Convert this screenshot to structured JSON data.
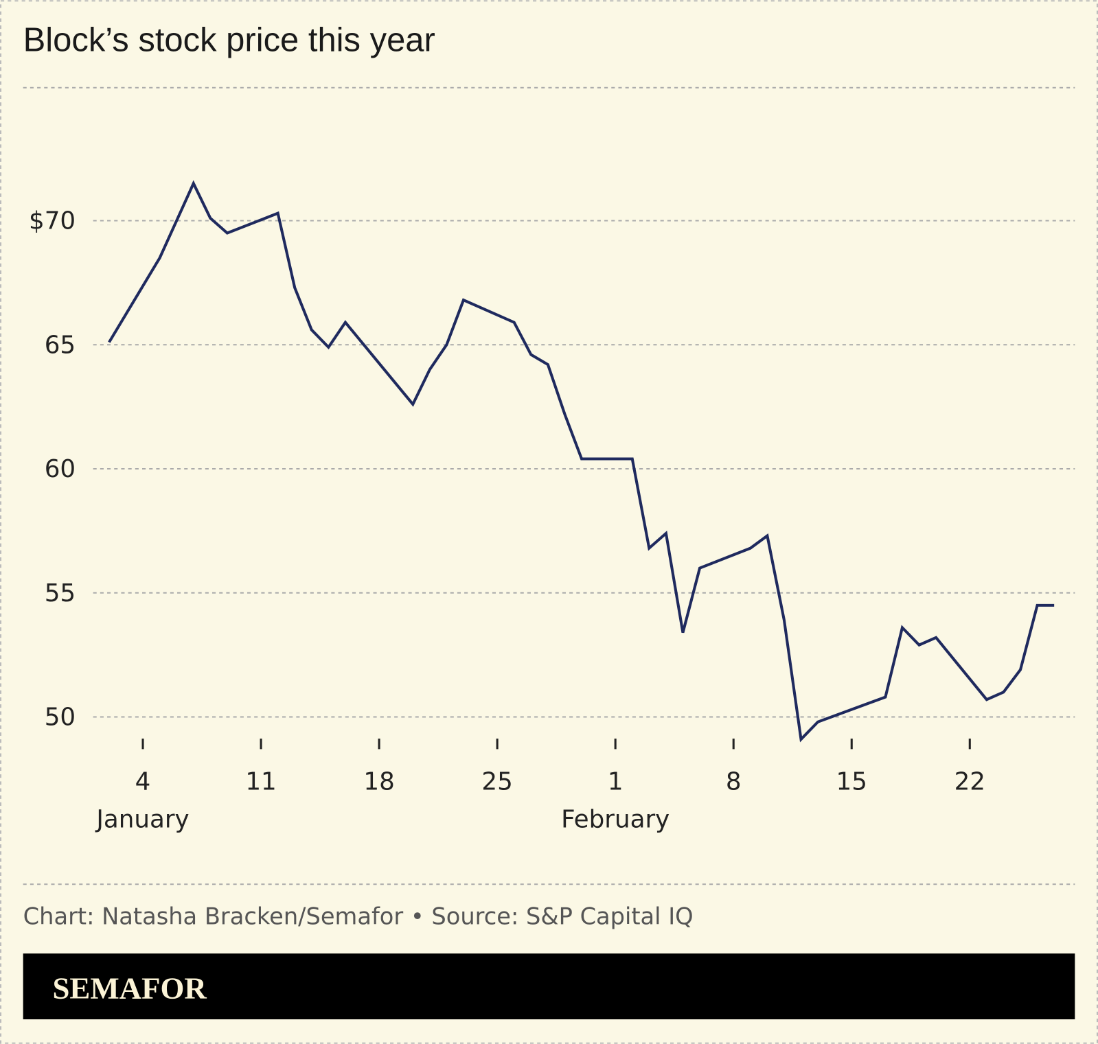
{
  "title": "Block’s stock price this year",
  "credit": "Chart: Natasha Bracken/Semafor • Source: S&P Capital IQ",
  "logo": "SEMAFOR",
  "colors": {
    "background": "#fbf8e5",
    "line": "#1f2a5e",
    "footer_bar": "#000000",
    "logo_text": "#fbf3d6"
  },
  "chart_data": {
    "type": "line",
    "title": "Block’s stock price this year",
    "xlabel": "",
    "ylabel": "",
    "ylim": [
      48.5,
      72
    ],
    "grid": true,
    "y_ticks": [
      {
        "value": 70,
        "label": "$70"
      },
      {
        "value": 65,
        "label": "65"
      },
      {
        "value": 60,
        "label": "60"
      },
      {
        "value": 55,
        "label": "55"
      },
      {
        "value": 50,
        "label": "50"
      }
    ],
    "x_ticks": [
      {
        "date": "Jan 4",
        "label": "4",
        "month": "January"
      },
      {
        "date": "Jan 11",
        "label": "11"
      },
      {
        "date": "Jan 18",
        "label": "18"
      },
      {
        "date": "Jan 25",
        "label": "25"
      },
      {
        "date": "Feb 1",
        "label": "1",
        "month": "February"
      },
      {
        "date": "Feb 8",
        "label": "8"
      },
      {
        "date": "Feb 15",
        "label": "15"
      },
      {
        "date": "Feb 22",
        "label": "22"
      }
    ],
    "series": [
      {
        "x": [
          "Jan 2",
          "Jan 5",
          "Jan 7",
          "Jan 8",
          "Jan 9",
          "Jan 12",
          "Jan 13",
          "Jan 14",
          "Jan 15",
          "Jan 16",
          "Jan 20",
          "Jan 21",
          "Jan 22",
          "Jan 23",
          "Jan 26",
          "Jan 27",
          "Jan 28",
          "Jan 29",
          "Jan 30",
          "Feb 2",
          "Feb 3",
          "Feb 4",
          "Feb 5",
          "Feb 6",
          "Feb 9",
          "Feb 10",
          "Feb 11",
          "Feb 12",
          "Feb 13",
          "Feb 17",
          "Feb 18",
          "Feb 19",
          "Feb 20",
          "Feb 23",
          "Feb 24",
          "Feb 25",
          "Feb 26",
          "Feb 27"
        ],
        "y": [
          65.1,
          68.5,
          71.5,
          70.1,
          69.5,
          70.3,
          67.3,
          65.6,
          64.9,
          65.9,
          62.6,
          64.0,
          65.0,
          66.8,
          65.9,
          64.6,
          64.2,
          62.2,
          60.4,
          60.4,
          56.8,
          57.4,
          53.4,
          56.0,
          56.8,
          57.3,
          53.9,
          49.1,
          49.8,
          50.8,
          53.6,
          52.9,
          53.2,
          50.7,
          51.0,
          51.9,
          54.5,
          54.5
        ]
      }
    ]
  }
}
